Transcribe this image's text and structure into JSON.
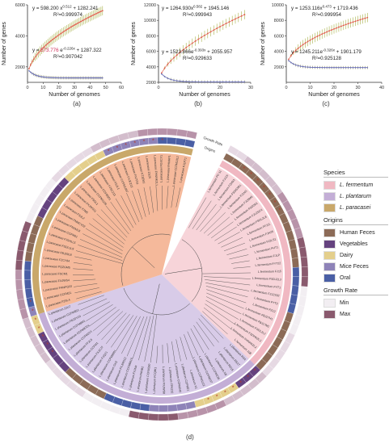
{
  "chart_data": [
    {
      "type": "line",
      "panel": "a",
      "xlabel": "Number of genomes",
      "ylabel": "Number of genes",
      "xlim": [
        0,
        60
      ],
      "ylim": [
        1000,
        6000
      ],
      "xticks": [
        "0",
        "10",
        "20",
        "30",
        "40",
        "50",
        "60"
      ],
      "yticks": [
        "2000",
        "4000",
        "6000"
      ],
      "pan_equation": "y = 598.200 xⁿᵒ·⁵¹² + 1282.241",
      "pan_eq_text": "y = 598.200 x",
      "pan_exp": "0.512",
      "pan_eq_tail": " + 1282.241",
      "pan_r2": "R²=0.999974",
      "core_eq_prefix": "y = ",
      "core_eq_coef": "573.776",
      "core_eq_mid": " e",
      "core_exp": "-0.226x",
      "core_eq_tail": " + 1287.322",
      "core_r2": "R²=0.907042",
      "pan": {
        "a": 598.2,
        "b": 0.512,
        "c": 1282.241
      },
      "core": {
        "a": 573.776,
        "b": -0.226,
        "c": 1287.322
      },
      "n_genomes": 48
    },
    {
      "type": "line",
      "panel": "b",
      "xlabel": "Number of genomes",
      "ylabel": "Number of genes",
      "xlim": [
        0,
        30
      ],
      "ylim": [
        2000,
        12000
      ],
      "xticks": [
        "0",
        "10",
        "20",
        "30"
      ],
      "yticks": [
        "2000",
        "4000",
        "6000",
        "8000",
        "10000",
        "12000"
      ],
      "pan_eq_text": "y = 1264.930x",
      "pan_exp": "0.582",
      "pan_eq_tail": " + 1945.146",
      "pan_r2": "R²=0.999943",
      "core_eq_prefix": "y = ",
      "core_eq_coef": "1523.866e",
      "core_eq_mid": "",
      "core_exp": "-0.393x",
      "core_eq_tail": " + 2055.957",
      "core_r2": "R²=0.929633",
      "pan": {
        "a": 1264.93,
        "b": 0.582,
        "c": 1945.146
      },
      "core": {
        "a": 1523.866,
        "b": -0.393,
        "c": 2055.957
      },
      "n_genomes": 28
    },
    {
      "type": "line",
      "panel": "c",
      "xlabel": "Number of genomes",
      "ylabel": "Number of genes",
      "xlim": [
        0,
        40
      ],
      "ylim": [
        0,
        10000
      ],
      "xticks": [
        "0",
        "10",
        "20",
        "30",
        "40"
      ],
      "yticks": [
        "2000",
        "4000",
        "6000",
        "8000",
        "10000"
      ],
      "pan_eq_text": "y = 1253.116x",
      "pan_exp": "0.473",
      "pan_eq_tail": " + 1719.436",
      "pan_r2": "R²=0.999954",
      "core_eq_prefix": "y = ",
      "core_eq_coef": "1245.211e",
      "core_eq_mid": "",
      "core_exp": "-0.326x",
      "core_eq_tail": " + 1901.179",
      "core_r2": "R²=0.925128",
      "pan": {
        "a": 1253.116,
        "b": 0.473,
        "c": 1719.436
      },
      "core": {
        "a": 1245.211,
        "b": -0.326,
        "c": 1901.179
      },
      "n_genomes": 34
    }
  ],
  "panel_labels": {
    "a": "(a)",
    "b": "(b)",
    "c": "(c)",
    "d": "(d)"
  },
  "tree": {
    "ring_labels": [
      "Growth Rate",
      "Origins"
    ],
    "fermentum": [
      "L.fermentum PC-11",
      "L.fermentum FJ115",
      "L.fermentum FZH53",
      "L.fermentum FSDG3R1",
      "L.fermentum FJ1M1",
      "L.fermentum FJ2BM6",
      "L.fermentum FSD2R1",
      "L.fermentum FJ1ZSC4",
      "L.fermentum FSDL2L8",
      "L.fermentum FFJ11",
      "L.fermentum FJH25",
      "L.fermentum FJ2LS1",
      "L.fermentum FHT1",
      "L.fermentum FJLP",
      "L.fermentum FYT22",
      "L.fermentum FJ15",
      "L.fermentum FSDJ2L3",
      "L.fermentum FYT1",
      "L.fermentum FJ1ZS32",
      "L.fermentum FYT3",
      "L.fermentum FZ12",
      "L.fermentum FBJ27H1",
      "L.fermentum FBJ17M1",
      "L.fermentum FSDL2L2",
      "L.fermentum FSDHN2L2",
      "L.fermentum FHNHK2L2",
      "L.fermentum 108"
    ],
    "plantarum": [
      "L.plantarum RS4",
      "L.plantarum RS17",
      "L.plantarum RS15",
      "L.plantarum X8",
      "L.plantarum CCFM236",
      "L.plantarum CCFM237",
      "L.plantarum CCFM1122",
      "L.plantarum X1",
      "L.plantarum CCFM21",
      "L.plantarum CCFM240",
      "L.plantarum FPA232",
      "L.plantarum FXJWS8",
      "L.plantarum FCQW1",
      "L.plantarum CCFM260",
      "L.plantarum FHNB2",
      "L.plantarum FXJN4",
      "L.plantarum CCFM8610",
      "L.plantarum FXJWS12",
      "L.plantarum GX2",
      "L.plantarum CCFM8661",
      "L.plantarum FJQZ1",
      "L.plantarum FXJCJ7",
      "L.plantarum CCFM1",
      "L.plantarum FFJL5",
      "L.plantarum CCFM233",
      "L.plantarum CCFM8724",
      "L.plantarum CCFM8M1",
      "L.plantarum FBJSY29",
      "L.plantarum CCFM8S1",
      "L.plantarum ZJU7"
    ],
    "paracasei": [
      "L.paracasei FZSL4",
      "L.paracasei CCFM21",
      "L.paracasei FHNFQ33",
      "L.paracasei FXJWS4",
      "L.paracasei FSCM1",
      "L.paracasei FQZGM5",
      "L.paracasei FZCY84",
      "L.paracasei FBJ29L8",
      "L.paracasei FSDL1L9",
      "L.paracasei FJSHLL5",
      "L.paracasei CCFM61",
      "L.paracasei FNXML8",
      "L.paracasei FNMCY02",
      "L.paracasei FSJL2",
      "L.paracasei X7M5",
      "L.paracasei FXJWS11",
      "L.paracasei FSDL1",
      "L.paracasei CCFM1106",
      "L.paracasei CCFM301",
      "L.paracasei FJSCZ13",
      "L.paracasei FSJL1",
      "L.paracasei CCFM1097",
      "L.paracasei FXJFZ12",
      "L.paracasei FXJTS1",
      "L.paracasei FZ1EM1",
      "L.paracasei ZS25",
      "L.paracasei FHNNK2L1",
      "L.paracasei FGXCY1",
      "L.paracasei FHNHP1",
      "L.paracasei CCFM1012",
      "L.paracasei FJ1FT1"
    ]
  },
  "legend": {
    "species_title": "Species",
    "species": [
      {
        "label": "L. fermentum",
        "color": "#f0b8c2"
      },
      {
        "label": "L. plantarum",
        "color": "#c3aed6"
      },
      {
        "label": "L. paracasei",
        "color": "#c9a86a"
      }
    ],
    "origins_title": "Origins",
    "origins": [
      {
        "label": "Human Feces",
        "color": "#8c6b57"
      },
      {
        "label": "Vegetables",
        "color": "#65437f"
      },
      {
        "label": "Dairy",
        "color": "#e4cf8c"
      },
      {
        "label": "Mice Feces",
        "color": "#8e83b8"
      },
      {
        "label": "Oral",
        "color": "#4a5fa5"
      }
    ],
    "growth_title": "Growth Rate",
    "growth": [
      {
        "label": "Min",
        "color": "#f2eef2"
      },
      {
        "label": "Max",
        "color": "#8a5a6e"
      }
    ]
  },
  "colors": {
    "pan_line": "#e05a4a",
    "pan_err": "#a8b24a",
    "core_line": "#6a6fb6",
    "core_err": "#8b8c4a",
    "fermentum_bg": "#f4c6cc",
    "plantarum_bg": "#cbb9e0",
    "paracasei_bg": "#f1a27a",
    "core_coef_highlight": "#d0305a"
  }
}
